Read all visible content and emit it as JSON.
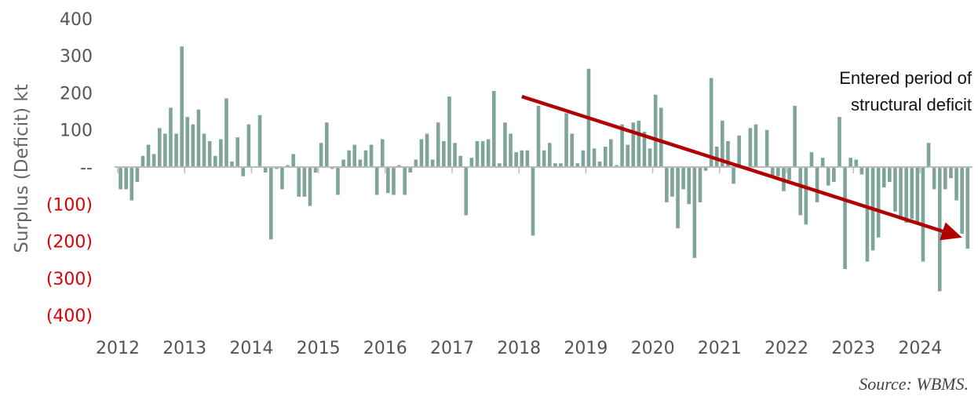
{
  "chart_data": {
    "type": "bar",
    "title": "",
    "xlabel": "",
    "ylabel": "Surplus (Deficit) kt",
    "ylim": [
      -400,
      400
    ],
    "y_ticks": [
      {
        "value": 400,
        "label": "400",
        "negative": false
      },
      {
        "value": 300,
        "label": "300",
        "negative": false
      },
      {
        "value": 200,
        "label": "200",
        "negative": false
      },
      {
        "value": 100,
        "label": "100",
        "negative": false
      },
      {
        "value": 0,
        "label": "--",
        "negative": false
      },
      {
        "value": -100,
        "label": "(100)",
        "negative": true
      },
      {
        "value": -200,
        "label": "(200)",
        "negative": true
      },
      {
        "value": -300,
        "label": "(300)",
        "negative": true
      },
      {
        "value": -400,
        "label": "(400)",
        "negative": true
      }
    ],
    "x_ticks": [
      "2012",
      "2013",
      "2014",
      "2015",
      "2016",
      "2017",
      "2018",
      "2019",
      "2020",
      "2021",
      "2022",
      "2023",
      "2024"
    ],
    "grid": false,
    "bar_color": "#7ea49b",
    "negative_label_color": "#dd0000",
    "trend_color": "#b00000",
    "x_start": "2012-01",
    "values": [
      -60,
      -60,
      -90,
      -40,
      30,
      60,
      35,
      105,
      90,
      160,
      90,
      325,
      135,
      115,
      155,
      90,
      70,
      30,
      75,
      185,
      15,
      80,
      -25,
      115,
      0,
      140,
      -15,
      -195,
      -5,
      -60,
      5,
      35,
      -80,
      -80,
      -105,
      -15,
      65,
      120,
      -5,
      -75,
      20,
      45,
      60,
      20,
      45,
      60,
      -75,
      75,
      -70,
      -75,
      5,
      -75,
      -15,
      20,
      75,
      90,
      20,
      120,
      70,
      190,
      65,
      30,
      -130,
      25,
      70,
      70,
      75,
      205,
      10,
      120,
      90,
      40,
      45,
      45,
      -185,
      165,
      45,
      65,
      10,
      10,
      145,
      90,
      10,
      45,
      265,
      50,
      15,
      55,
      75,
      5,
      115,
      60,
      120,
      125,
      95,
      50,
      195,
      160,
      -95,
      -80,
      -165,
      -60,
      -100,
      -245,
      -95,
      -10,
      240,
      55,
      125,
      70,
      -45,
      85,
      -5,
      105,
      115,
      0,
      100,
      -25,
      -25,
      -65,
      -35,
      165,
      -130,
      -155,
      40,
      -95,
      25,
      -50,
      -40,
      135,
      -275,
      25,
      20,
      -20,
      -255,
      -225,
      -190,
      -55,
      -40,
      -120,
      -135,
      -150,
      -140,
      -155,
      -255,
      65,
      -60,
      -335,
      -60,
      -30,
      -90,
      -180,
      -220
    ],
    "annotations": [
      {
        "text_lines": [
          "Entered period of",
          "structural deficit"
        ],
        "arrow_from": {
          "x": "2018-01",
          "y": 190
        },
        "arrow_to": {
          "x": "2024-08",
          "y": -190
        }
      }
    ]
  },
  "source": "Source: WBMS."
}
